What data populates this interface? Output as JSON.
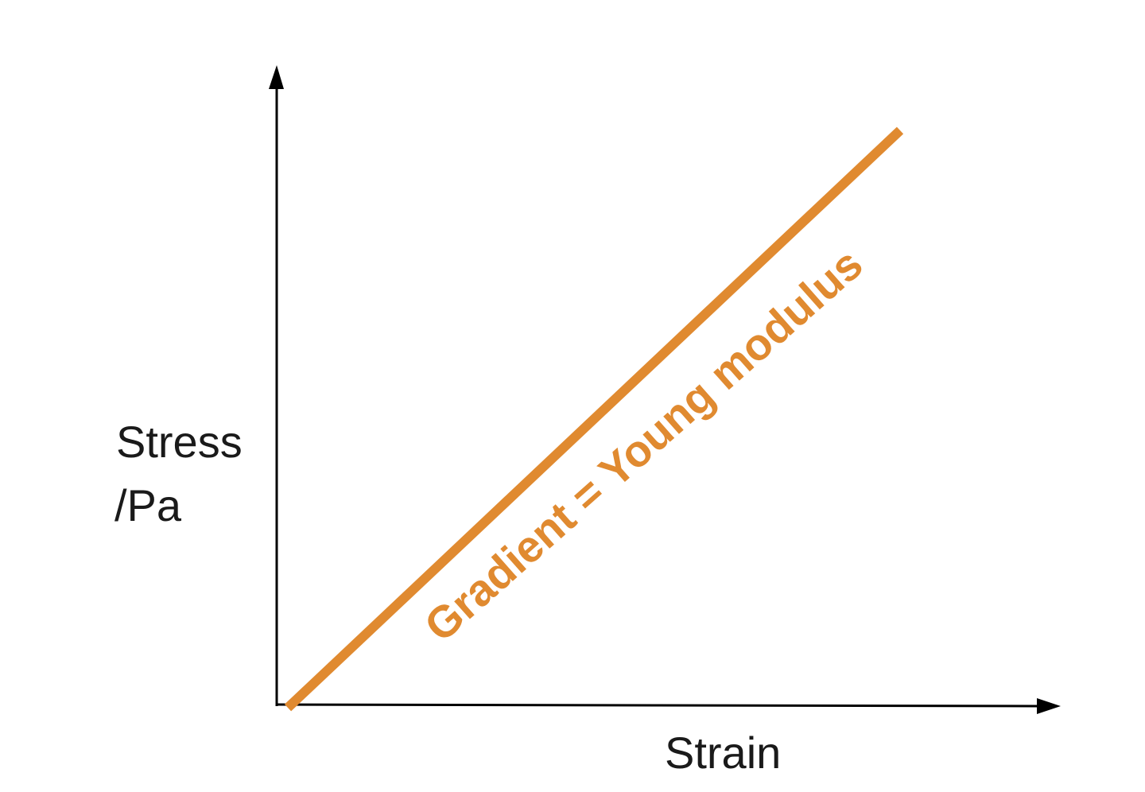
{
  "chart_data": {
    "type": "line",
    "title": "",
    "xlabel": "Strain",
    "ylabel_lines": [
      "Stress",
      "/Pa"
    ],
    "series": [
      {
        "points": [
          [
            0,
            0
          ],
          [
            1,
            1
          ]
        ],
        "color": "#e08a30"
      }
    ],
    "annotation": {
      "text": "Gradient = Young modulus",
      "color": "#e08a30"
    },
    "xticks": [],
    "yticks": [],
    "grid": false,
    "axis_color": "#000000"
  }
}
